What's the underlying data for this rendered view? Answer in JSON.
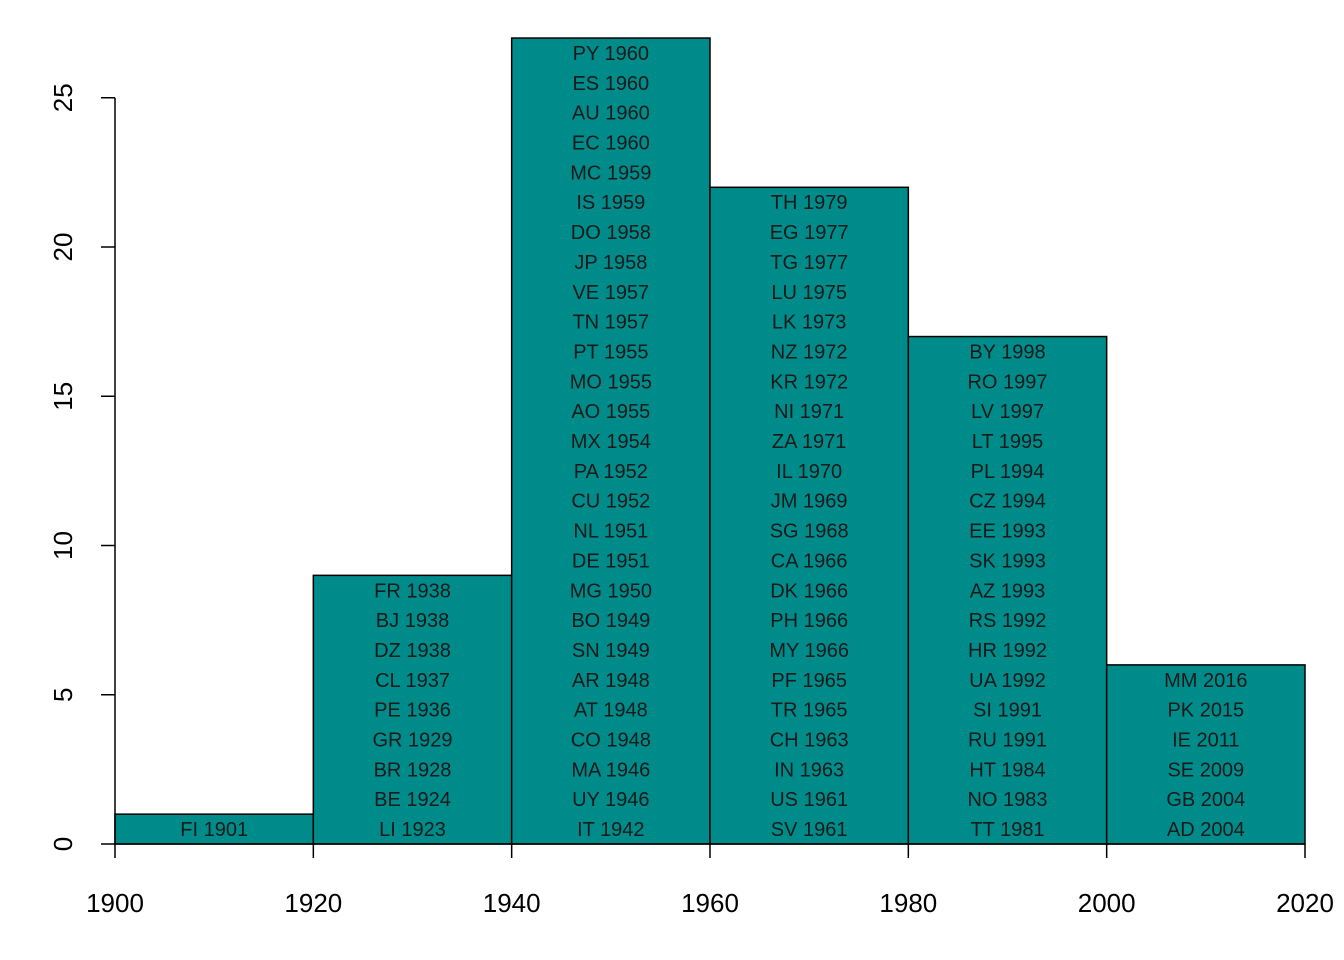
{
  "chart_data": {
    "type": "bar",
    "title": "",
    "xlabel": "",
    "ylabel": "",
    "xlim": [
      1900,
      2020
    ],
    "ylim": [
      0,
      27
    ],
    "x_ticks": [
      1900,
      1920,
      1940,
      1960,
      1980,
      2000,
      2020
    ],
    "y_ticks": [
      0,
      5,
      10,
      15,
      20,
      25
    ],
    "bar_color": "#008b8b",
    "bars": [
      {
        "x_start": 1900,
        "x_end": 1920,
        "count": 1,
        "labels": [
          "FI 1901"
        ]
      },
      {
        "x_start": 1920,
        "x_end": 1940,
        "count": 9,
        "labels": [
          "LI 1923",
          "BE 1924",
          "BR 1928",
          "GR 1929",
          "PE 1936",
          "CL 1937",
          "DZ 1938",
          "BJ 1938",
          "FR 1938"
        ]
      },
      {
        "x_start": 1940,
        "x_end": 1960,
        "count": 27,
        "labels": [
          "IT 1942",
          "UY 1946",
          "MA 1946",
          "CO 1948",
          "AT 1948",
          "AR 1948",
          "SN 1949",
          "BO 1949",
          "MG 1950",
          "DE 1951",
          "NL 1951",
          "CU 1952",
          "PA 1952",
          "MX 1954",
          "AO 1955",
          "MO 1955",
          "PT 1955",
          "TN 1957",
          "VE 1957",
          "JP 1958",
          "DO 1958",
          "IS 1959",
          "MC 1959",
          "EC 1960",
          "AU 1960",
          "ES 1960",
          "PY 1960"
        ]
      },
      {
        "x_start": 1960,
        "x_end": 1980,
        "count": 22,
        "labels": [
          "SV 1961",
          "US 1961",
          "IN 1963",
          "CH 1963",
          "TR 1965",
          "PF 1965",
          "MY 1966",
          "PH 1966",
          "DK 1966",
          "CA 1966",
          "SG 1968",
          "JM 1969",
          "IL 1970",
          "ZA 1971",
          "NI 1971",
          "KR 1972",
          "NZ 1972",
          "LK 1973",
          "LU 1975",
          "TG 1977",
          "EG 1977",
          "TH 1979"
        ]
      },
      {
        "x_start": 1980,
        "x_end": 2000,
        "count": 17,
        "labels": [
          "TT 1981",
          "NO 1983",
          "HT 1984",
          "RU 1991",
          "SI 1991",
          "UA 1992",
          "HR 1992",
          "RS 1992",
          "AZ 1993",
          "SK 1993",
          "EE 1993",
          "CZ 1994",
          "PL 1994",
          "LT 1995",
          "LV 1997",
          "RO 1997",
          "BY 1998"
        ]
      },
      {
        "x_start": 2000,
        "x_end": 2020,
        "count": 6,
        "labels": [
          "AD 2004",
          "GB 2004",
          "SE 2009",
          "IE 2011",
          "PK 2015",
          "MM 2016"
        ]
      }
    ]
  }
}
